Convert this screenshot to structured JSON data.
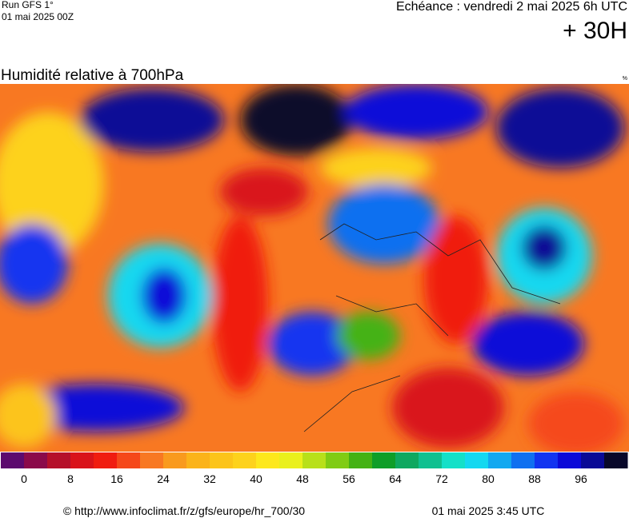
{
  "header": {
    "run": "Run GFS 1°",
    "run_date": "01 mai 2025 00Z",
    "forecast": "Echéance : vendredi 2 mai 2025 6h UTC",
    "lead": "+ 30H",
    "title": "Humidité relative à 700hPa",
    "unit": "%"
  },
  "colorbar": {
    "range": [
      -4,
      104
    ],
    "ticks": [
      0,
      8,
      16,
      24,
      32,
      40,
      48,
      56,
      64,
      72,
      80,
      88,
      96
    ],
    "colors": [
      "#5c0a6e",
      "#8b0a4a",
      "#b5102a",
      "#d9131a",
      "#f01c10",
      "#f5481a",
      "#f87822",
      "#f99a1e",
      "#fbb31a",
      "#fcc41a",
      "#fdd21c",
      "#fde81c",
      "#eaf01c",
      "#b8e01a",
      "#80cc14",
      "#44b214",
      "#0e9e28",
      "#0ea860",
      "#10c090",
      "#14e0c8",
      "#14d8f0",
      "#12a8f0",
      "#1070f0",
      "#1234f0",
      "#0c0ad8",
      "#0a0a96",
      "#08082a"
    ]
  },
  "footer": {
    "source": "© http://www.infoclimat.fr/z/gfs/europe/hr_700/30",
    "created": "01 mai 2025  3:45 UTC"
  }
}
